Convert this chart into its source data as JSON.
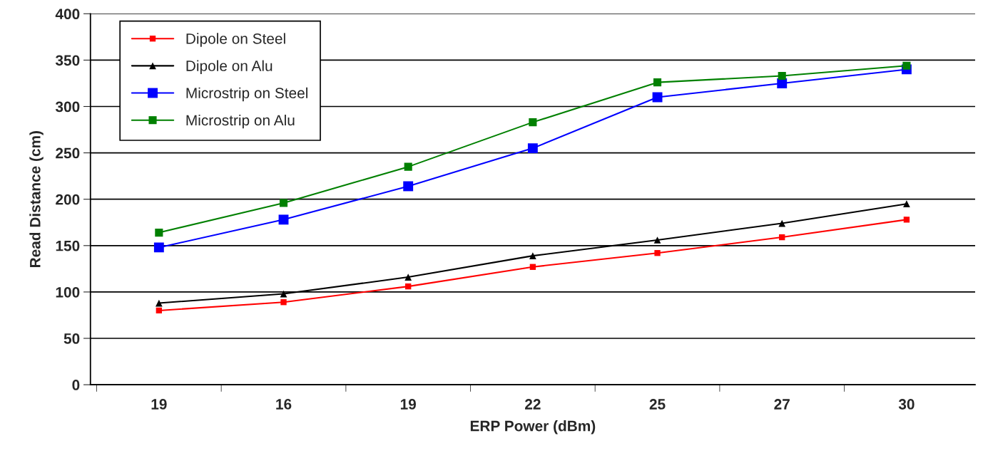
{
  "chart_data": {
    "type": "line",
    "xlabel": "ERP Power (dBm)",
    "ylabel": "Read Distance (cm)",
    "categories": [
      "19",
      "16",
      "19",
      "22",
      "25",
      "27",
      "30"
    ],
    "series": [
      {
        "name": "Dipole on Steel",
        "color": "#ff0000",
        "marker": "square",
        "values": [
          80,
          89,
          106,
          127,
          142,
          159,
          178
        ]
      },
      {
        "name": "Dipole on Alu",
        "color": "#000000",
        "marker": "triangle",
        "values": [
          88,
          98,
          116,
          139,
          156,
          174,
          195
        ]
      },
      {
        "name": "Microstrip on Steel",
        "color": "#0000ff",
        "marker": "square",
        "values": [
          148,
          178,
          214,
          255,
          310,
          325,
          340
        ]
      },
      {
        "name": "Microstrip on Alu",
        "color": "#008000",
        "marker": "square",
        "values": [
          164,
          196,
          235,
          283,
          326,
          333,
          344
        ]
      }
    ],
    "ylim": [
      0,
      400
    ],
    "yticks": [
      0,
      50,
      100,
      150,
      200,
      250,
      300,
      350,
      400
    ],
    "grid": "y",
    "legend": "top left",
    "line_style": "solid"
  }
}
